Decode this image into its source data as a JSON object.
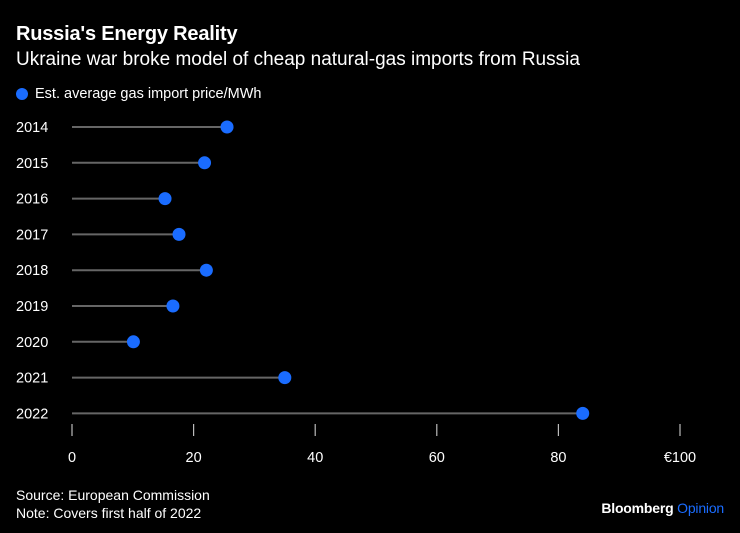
{
  "title": "Russia's Energy Reality",
  "subtitle": "Ukraine war broke model of cheap natural-gas imports from Russia",
  "colors": {
    "background": "#000000",
    "marker": "#1a6cff",
    "stem": "#666666",
    "text": "#ffffff"
  },
  "chart_data": {
    "type": "lollipop",
    "title": "Russia's Energy Reality",
    "subtitle": "Ukraine war broke model of cheap natural-gas imports from Russia",
    "orientation": "horizontal",
    "categories": [
      "2014",
      "2015",
      "2016",
      "2017",
      "2018",
      "2019",
      "2020",
      "2021",
      "2022"
    ],
    "series": [
      {
        "name": "Est. average gas import price/MWh",
        "values": [
          25.5,
          21.8,
          15.3,
          17.6,
          22.1,
          16.6,
          10.1,
          35.0,
          84.0
        ]
      }
    ],
    "xlim": [
      0,
      100
    ],
    "xticks": [
      0,
      20,
      40,
      60,
      80,
      100
    ],
    "xtick_labels": [
      "0",
      "20",
      "40",
      "60",
      "80",
      "€100"
    ],
    "legend_position": "top-left"
  },
  "footer": {
    "source": "Source: European Commission",
    "note": "Note: Covers first half of 2022",
    "brand": "Bloomberg",
    "brand_suffix": "Opinion"
  }
}
